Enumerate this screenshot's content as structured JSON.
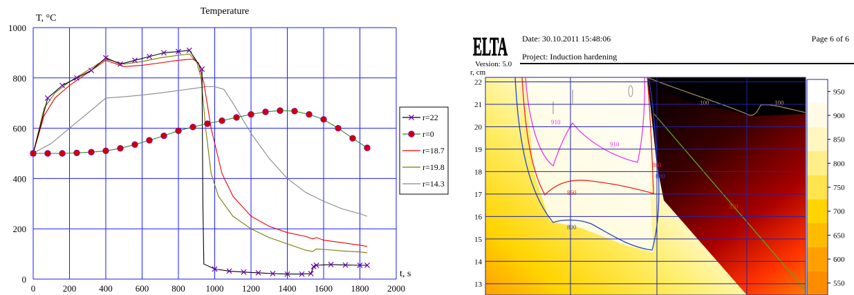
{
  "chart_data": [
    {
      "type": "line",
      "title": "Temperature",
      "ylabel": "T, °C",
      "xlabel": "t, s",
      "xlim": [
        0,
        2000
      ],
      "ylim": [
        0,
        1000
      ],
      "x_ticks": [
        0,
        100,
        200,
        300,
        400,
        500,
        600,
        700,
        800,
        900,
        1000,
        1100,
        1200,
        1300,
        1400,
        1500,
        1600,
        1700,
        1800,
        1900,
        2000
      ],
      "y_ticks": [
        0,
        200,
        400,
        600,
        800,
        1000
      ],
      "grid": true,
      "legend_position": "right",
      "series": [
        {
          "name": "r=22",
          "color": "#6a00b8",
          "marker": "x",
          "x": [
            0,
            80,
            160,
            240,
            320,
            400,
            480,
            560,
            640,
            720,
            800,
            860,
            930,
            935,
            940,
            1000,
            1080,
            1160,
            1240,
            1320,
            1400,
            1480,
            1530,
            1545,
            1560,
            1640,
            1720,
            1800,
            1840
          ],
          "y": [
            500,
            720,
            770,
            800,
            830,
            880,
            855,
            870,
            885,
            900,
            905,
            910,
            835,
            300,
            60,
            40,
            32,
            28,
            25,
            22,
            20,
            20,
            22,
            50,
            55,
            58,
            56,
            55,
            55
          ]
        },
        {
          "name": "r=0",
          "color": "#cc0000",
          "marker": "dot",
          "x": [
            0,
            80,
            160,
            240,
            320,
            400,
            480,
            560,
            640,
            720,
            800,
            880,
            960,
            1040,
            1120,
            1200,
            1280,
            1360,
            1440,
            1520,
            1600,
            1680,
            1760,
            1840
          ],
          "y": [
            500,
            500,
            500,
            502,
            505,
            510,
            520,
            535,
            552,
            570,
            590,
            605,
            618,
            630,
            643,
            655,
            665,
            670,
            668,
            655,
            635,
            600,
            560,
            522
          ]
        },
        {
          "name": "r=18.7",
          "color": "#ee0000",
          "marker": "none",
          "x": [
            0,
            60,
            120,
            200,
            300,
            400,
            500,
            600,
            700,
            800,
            880,
            910,
            940,
            980,
            1040,
            1100,
            1200,
            1300,
            1400,
            1500,
            1540,
            1560,
            1600,
            1700,
            1800,
            1840
          ],
          "y": [
            500,
            650,
            720,
            770,
            820,
            870,
            845,
            850,
            860,
            870,
            875,
            860,
            780,
            600,
            420,
            330,
            250,
            210,
            185,
            170,
            160,
            165,
            155,
            145,
            135,
            130
          ]
        },
        {
          "name": "r=19.8",
          "color": "#7a7a00",
          "marker": "none",
          "x": [
            0,
            60,
            120,
            200,
            300,
            400,
            500,
            600,
            700,
            800,
            860,
            900,
            925,
            950,
            980,
            1020,
            1100,
            1200,
            1300,
            1400,
            1500,
            1540,
            1560,
            1600,
            1700,
            1800,
            1840
          ],
          "y": [
            500,
            680,
            740,
            785,
            830,
            875,
            855,
            865,
            880,
            890,
            895,
            865,
            800,
            600,
            420,
            330,
            250,
            200,
            165,
            140,
            115,
            110,
            120,
            118,
            112,
            108,
            105
          ]
        },
        {
          "name": "r=14.3",
          "color": "#888888",
          "marker": "none",
          "x": [
            0,
            100,
            200,
            300,
            400,
            500,
            600,
            700,
            800,
            900,
            950,
            1000,
            1050,
            1100,
            1200,
            1300,
            1400,
            1500,
            1600,
            1700,
            1800,
            1840
          ],
          "y": [
            500,
            540,
            600,
            660,
            720,
            725,
            732,
            740,
            750,
            760,
            765,
            765,
            755,
            700,
            580,
            480,
            400,
            345,
            310,
            280,
            260,
            250
          ]
        }
      ]
    },
    {
      "type": "heatmap",
      "ylabel": "r, cm",
      "y_ticks": [
        13,
        14,
        15,
        16,
        17,
        18,
        19,
        20,
        21,
        22
      ],
      "ylim": [
        12.5,
        22.2
      ],
      "colorbar_ticks": [
        550,
        600,
        650,
        700,
        750,
        800,
        850,
        900,
        950
      ],
      "colorbar_range": [
        525,
        975
      ],
      "contour_labels": [
        "910",
        "910",
        "860",
        "860",
        "800",
        "800",
        "100",
        "100",
        "350"
      ]
    }
  ],
  "report_header": {
    "logo_text": "ELTA",
    "version": "Version: 5.0",
    "date": "Date: 30.10.2011 15:48:06",
    "page": "Page 6 of 6",
    "project": "Project: Induction hardening"
  }
}
